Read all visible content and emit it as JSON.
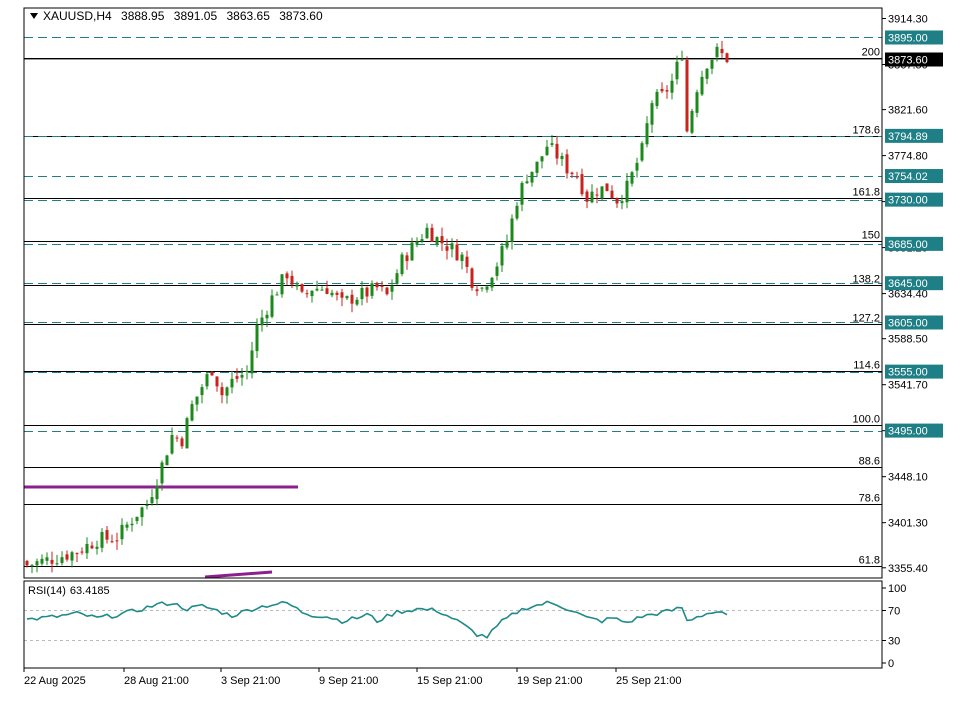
{
  "header": {
    "symbol": "XAUUSD,H4",
    "ohlc": [
      "3888.95",
      "3891.05",
      "3863.65",
      "3873.60"
    ]
  },
  "rsi_panel": {
    "name": "RSI(14)",
    "value": "63.4185"
  },
  "colors": {
    "bull": "#1b8a1b",
    "bear": "#c9231e",
    "level_dashed": "#1f7f86",
    "tag_bg": "#1f7f86",
    "rsi_line": "#1f8a8a",
    "purple": "#8b1f8f",
    "price_tag": "#000000"
  },
  "chart_data": {
    "type": "candlestick",
    "symbol": "XAUUSD",
    "timeframe": "H4",
    "price_axis_ticks": [
      "3914.30",
      "3867.50",
      "3821.60",
      "3774.80",
      "3728.00",
      "3681.20",
      "3634.40",
      "3588.50",
      "3541.70",
      "3494.90",
      "3448.10",
      "3401.30",
      "3355.40"
    ],
    "x_ticks": [
      "22 Aug 2025",
      "28 Aug 21:00",
      "3 Sep 21:00",
      "9 Sep 21:00",
      "15 Sep 21:00",
      "19 Sep 21:00",
      "25 Sep 21:00"
    ],
    "fib_levels": [
      {
        "label": "200",
        "price": 3874
      },
      {
        "label": "178.6",
        "price": 3795
      },
      {
        "label": "161.8",
        "price": 3732
      },
      {
        "label": "150",
        "price": 3688
      },
      {
        "label": "138.2",
        "price": 3643
      },
      {
        "label": "127.2",
        "price": 3603
      },
      {
        "label": "114.6",
        "price": 3556
      },
      {
        "label": "100.0",
        "price": 3501
      },
      {
        "label": "88.6",
        "price": 3458
      },
      {
        "label": "78.6",
        "price": 3420
      },
      {
        "label": "61.8",
        "price": 3357
      }
    ],
    "horizontal_levels": [
      "3895.00",
      "3794.89",
      "3754.02",
      "3730.00",
      "3685.00",
      "3645.00",
      "3605.00",
      "3555.00",
      "3495.00"
    ],
    "current_price": "3873.60",
    "close_path": [
      [
        0,
        3358
      ],
      [
        6,
        3366
      ],
      [
        10,
        3372
      ],
      [
        14,
        3384
      ],
      [
        18,
        3386
      ],
      [
        22,
        3411
      ],
      [
        24,
        3420
      ],
      [
        27,
        3460
      ],
      [
        29,
        3490
      ],
      [
        31,
        3486
      ],
      [
        33,
        3520
      ],
      [
        35,
        3540
      ],
      [
        37,
        3558
      ],
      [
        39,
        3532
      ],
      [
        41,
        3545
      ],
      [
        44,
        3555
      ],
      [
        46,
        3600
      ],
      [
        49,
        3630
      ],
      [
        52,
        3655
      ],
      [
        55,
        3630
      ],
      [
        57,
        3640
      ],
      [
        60,
        3640
      ],
      [
        63,
        3624
      ],
      [
        65,
        3630
      ],
      [
        68,
        3635
      ],
      [
        70,
        3640
      ],
      [
        72,
        3632
      ],
      [
        75,
        3668
      ],
      [
        78,
        3688
      ],
      [
        80,
        3700
      ],
      [
        82,
        3690
      ],
      [
        85,
        3680
      ],
      [
        87,
        3672
      ],
      [
        89,
        3648
      ],
      [
        91,
        3640
      ],
      [
        94,
        3665
      ],
      [
        96,
        3688
      ],
      [
        98,
        3730
      ],
      [
        100,
        3755
      ],
      [
        102,
        3765
      ],
      [
        104,
        3785
      ],
      [
        106,
        3775
      ],
      [
        108,
        3762
      ],
      [
        110,
        3755
      ],
      [
        112,
        3732
      ],
      [
        114,
        3740
      ],
      [
        116,
        3742
      ],
      [
        118,
        3730
      ],
      [
        120,
        3742
      ],
      [
        123,
        3780
      ],
      [
        125,
        3830
      ],
      [
        127,
        3835
      ],
      [
        129,
        3850
      ],
      [
        131,
        3880
      ],
      [
        132,
        3800
      ],
      [
        134,
        3845
      ],
      [
        136,
        3870
      ],
      [
        138,
        3880
      ],
      [
        140,
        3874
      ]
    ],
    "candle_count": 141,
    "rsi": {
      "name": "RSI(14)",
      "current": 63.4185,
      "levels": [
        70,
        30
      ],
      "axis_ticks": [
        "100",
        "70",
        "30",
        "0"
      ],
      "path": [
        [
          0,
          58
        ],
        [
          6,
          62
        ],
        [
          10,
          66
        ],
        [
          14,
          60
        ],
        [
          18,
          64
        ],
        [
          22,
          70
        ],
        [
          26,
          78
        ],
        [
          29,
          80
        ],
        [
          32,
          72
        ],
        [
          35,
          76
        ],
        [
          38,
          70
        ],
        [
          41,
          63
        ],
        [
          44,
          70
        ],
        [
          46,
          74
        ],
        [
          49,
          78
        ],
        [
          52,
          80
        ],
        [
          55,
          68
        ],
        [
          57,
          64
        ],
        [
          60,
          62
        ],
        [
          63,
          56
        ],
        [
          66,
          60
        ],
        [
          68,
          65
        ],
        [
          70,
          56
        ],
        [
          74,
          68
        ],
        [
          78,
          72
        ],
        [
          82,
          70
        ],
        [
          85,
          60
        ],
        [
          87,
          52
        ],
        [
          90,
          38
        ],
        [
          92,
          35
        ],
        [
          95,
          55
        ],
        [
          98,
          68
        ],
        [
          100,
          74
        ],
        [
          104,
          80
        ],
        [
          106,
          78
        ],
        [
          109,
          70
        ],
        [
          112,
          60
        ],
        [
          115,
          56
        ],
        [
          117,
          60
        ],
        [
          120,
          54
        ],
        [
          123,
          62
        ],
        [
          126,
          66
        ],
        [
          129,
          70
        ],
        [
          131,
          74
        ],
        [
          132,
          56
        ],
        [
          134,
          62
        ],
        [
          136,
          66
        ],
        [
          138,
          68
        ],
        [
          140,
          63
        ]
      ]
    }
  }
}
